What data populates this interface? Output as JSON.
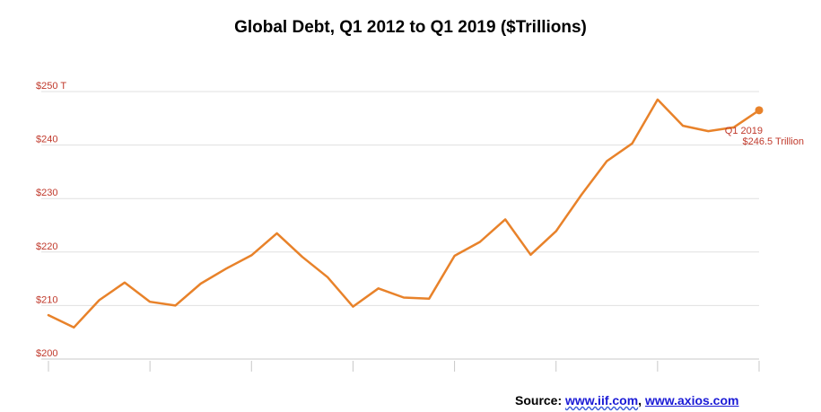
{
  "chart_data": {
    "type": "line",
    "title": "Global Debt, Q1 2012 to Q1 2019 ($Trillions)",
    "xlabel": "",
    "ylabel": "",
    "ylim": [
      200,
      250
    ],
    "y_ticks": [
      {
        "value": 250,
        "label": "$250 T"
      },
      {
        "value": 240,
        "label": "$240"
      },
      {
        "value": 230,
        "label": "$230"
      },
      {
        "value": 220,
        "label": "$220"
      },
      {
        "value": 210,
        "label": "$210"
      },
      {
        "value": 200,
        "label": "$200"
      }
    ],
    "grid": true,
    "series": [
      {
        "color": "#e8822a",
        "values": [
          208.2,
          205.9,
          211.0,
          214.3,
          210.7,
          210.0,
          214.1,
          216.9,
          219.4,
          223.5,
          219.1,
          215.3,
          209.8,
          213.2,
          211.5,
          211.3,
          219.3,
          221.9,
          226.1,
          219.5,
          223.9,
          230.7,
          237.0,
          240.3,
          248.5,
          243.6,
          242.6,
          243.3,
          246.5
        ]
      }
    ],
    "annotation": {
      "line1": "Q1 2019",
      "line2": "$246.5 Trillion",
      "color": "#c0392b"
    },
    "tick_label_color": "#c0392b"
  },
  "footer": {
    "prefix": "Source: ",
    "link1": "www.iif.com",
    "separator": ", ",
    "link2": "www.axios.com"
  }
}
